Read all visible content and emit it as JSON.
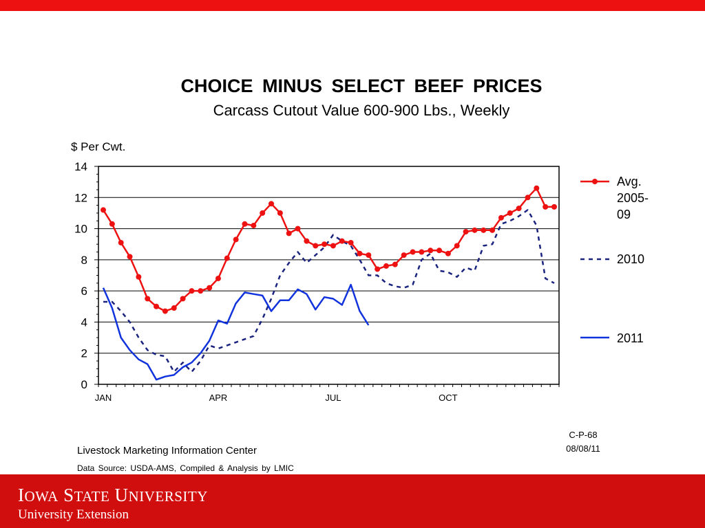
{
  "header": {
    "accent_color": "#ee1111"
  },
  "chart_data": {
    "type": "line",
    "title": "CHOICE  MINUS  SELECT  BEEF  PRICES",
    "subtitle": "Carcass Cutout Value 600-900 Lbs., Weekly",
    "ylabel": "$ Per Cwt.",
    "xlabel": "",
    "ylim": [
      0,
      14
    ],
    "y_ticks": [
      0,
      2,
      4,
      6,
      8,
      10,
      12,
      14
    ],
    "x_tick_labels": [
      {
        "label": "JAN",
        "week": 1
      },
      {
        "label": "APR",
        "week": 14
      },
      {
        "label": "JUL",
        "week": 27
      },
      {
        "label": "OCT",
        "week": 40
      }
    ],
    "x_weeks": 52,
    "grid": true,
    "legend_position": "right",
    "series": [
      {
        "name": "Avg.\n2005-\n09",
        "color": "#ee1111",
        "style": "solid-markers",
        "values": [
          11.2,
          10.3,
          9.1,
          8.2,
          6.9,
          5.5,
          5.0,
          4.7,
          4.9,
          5.5,
          6.0,
          6.0,
          6.2,
          6.8,
          8.1,
          9.3,
          10.3,
          10.2,
          11.0,
          11.6,
          11.0,
          9.7,
          10.0,
          9.2,
          8.9,
          9.0,
          8.9,
          9.2,
          9.1,
          8.4,
          8.3,
          7.4,
          7.6,
          7.7,
          8.3,
          8.5,
          8.5,
          8.6,
          8.6,
          8.4,
          8.9,
          9.8,
          9.9,
          9.9,
          9.9,
          10.7,
          11.0,
          11.3,
          12.0,
          12.6,
          11.4,
          11.4
        ]
      },
      {
        "name": "2010",
        "color": "#1a237e",
        "style": "dashed",
        "values": [
          5.3,
          5.3,
          4.7,
          4.0,
          3.0,
          2.2,
          1.9,
          1.8,
          0.8,
          1.4,
          0.8,
          1.5,
          2.5,
          2.3,
          2.5,
          2.7,
          2.9,
          3.1,
          4.2,
          5.5,
          7.0,
          7.8,
          8.5,
          7.8,
          8.3,
          8.8,
          9.6,
          9.2,
          8.9,
          8.0,
          7.0,
          7.0,
          6.5,
          6.3,
          6.2,
          6.4,
          8.0,
          8.4,
          7.3,
          7.2,
          6.9,
          7.5,
          7.3,
          8.9,
          9.0,
          10.3,
          10.5,
          10.8,
          11.2,
          10.2,
          6.8,
          6.5
        ]
      },
      {
        "name": "2011",
        "color": "#1133dd",
        "style": "solid",
        "values": [
          6.2,
          4.9,
          3.0,
          2.2,
          1.6,
          1.3,
          0.3,
          0.5,
          0.6,
          1.1,
          1.4,
          2.0,
          2.8,
          4.1,
          3.9,
          5.2,
          5.9,
          5.8,
          5.7,
          4.7,
          5.4,
          5.4,
          6.1,
          5.8,
          4.8,
          5.6,
          5.5,
          5.1,
          6.4,
          4.7,
          3.8
        ]
      }
    ]
  },
  "notes": {
    "code": "C-P-68",
    "date": "08/08/11"
  },
  "source": {
    "center": "Livestock Marketing Information Center",
    "data": "Data Source:  USDA-AMS, Compiled & Analysis by LMIC"
  },
  "footer": {
    "logo": "IOWA STATE UNIVERSITY",
    "subtitle": "University Extension",
    "color": "#d10e0e"
  }
}
